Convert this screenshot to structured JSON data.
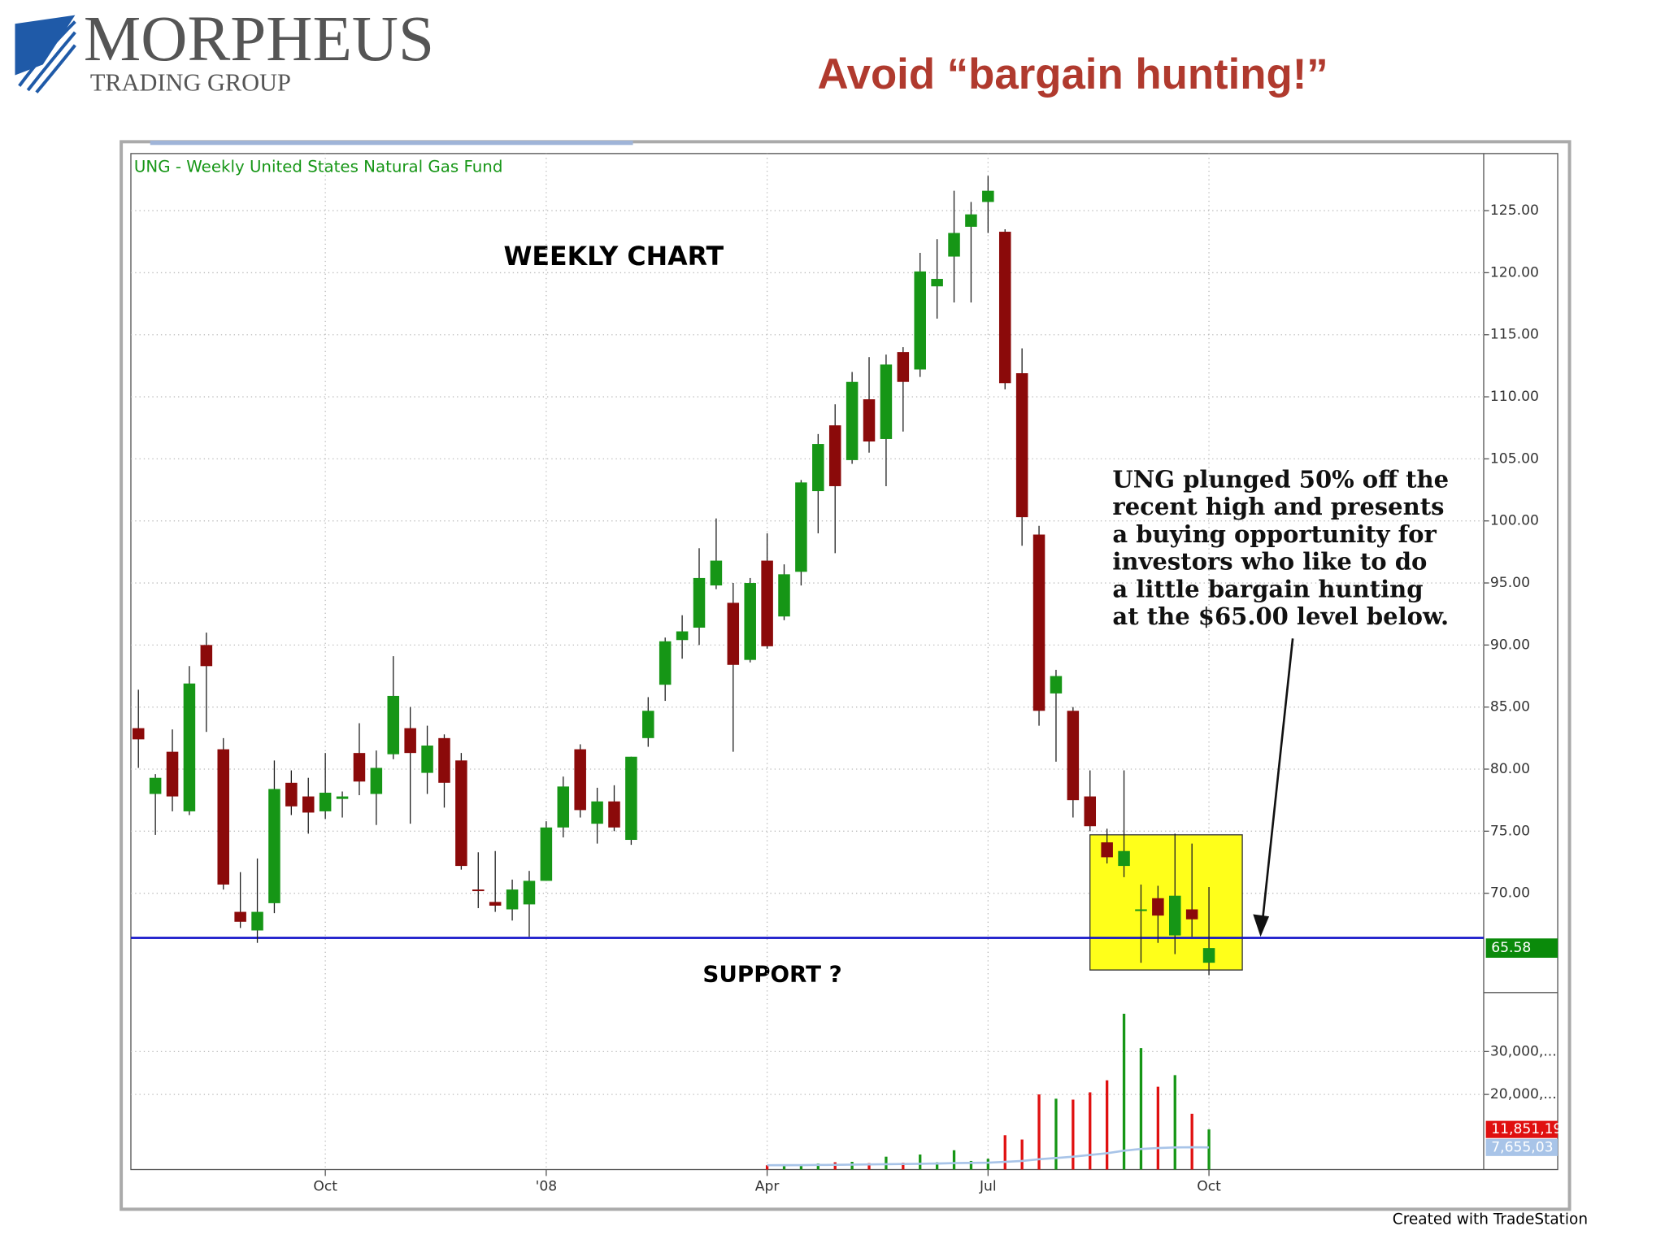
{
  "logo": {
    "name": "MORPHEUS",
    "tagline": "TRADING GROUP"
  },
  "slide_title": "Avoid “bargain hunting!”",
  "footer": "Created with TradeStation",
  "chart_data": {
    "type": "candlestick",
    "title": "UNG - Weekly  United States Natural Gas Fund",
    "annotations": {
      "chart_label": "WEEKLY CHART",
      "support_label": "SUPPORT ?",
      "note": [
        "UNG plunged 50% off the",
        "recent high and presents",
        "a buying opportunity for",
        "investors who like to do",
        "a little bargain hunting",
        "at the $65.00 level below."
      ]
    },
    "categories": [
      null,
      null,
      null,
      null,
      null,
      null,
      null,
      null,
      null,
      null,
      null,
      "Oct",
      null,
      null,
      null,
      null,
      null,
      null,
      null,
      null,
      null,
      null,
      null,
      null,
      "'08",
      null,
      null,
      null,
      null,
      null,
      null,
      null,
      null,
      null,
      null,
      null,
      null,
      "Apr",
      null,
      null,
      null,
      null,
      null,
      null,
      null,
      null,
      null,
      null,
      null,
      null,
      "Jul",
      null,
      null,
      null,
      null,
      null,
      null,
      null,
      null,
      null,
      null,
      null,
      null,
      "Oct"
    ],
    "open": [
      83.3,
      78.0,
      81.4,
      76.6,
      90.0,
      81.6,
      68.5,
      67.0,
      69.2,
      78.9,
      77.8,
      76.6,
      77.6,
      81.3,
      78.0,
      81.2,
      83.3,
      79.7,
      82.5,
      80.7,
      70.3,
      69.3,
      68.7,
      69.1,
      71.0,
      75.3,
      81.6,
      75.6,
      77.4,
      74.3,
      82.5,
      86.8,
      90.4,
      91.4,
      94.8,
      93.4,
      88.8,
      96.8,
      92.3,
      95.9,
      102.4,
      107.7,
      104.9,
      109.8,
      106.6,
      113.6,
      112.2,
      118.9,
      121.3,
      123.7,
      125.7,
      123.3,
      111.9,
      98.9,
      86.1,
      84.7,
      77.8,
      74.1,
      72.2,
      68.6,
      69.6,
      66.6,
      68.7,
      64.4
    ],
    "high": [
      86.4,
      79.6,
      83.2,
      88.3,
      91.0,
      82.5,
      71.7,
      72.8,
      80.7,
      79.9,
      79.3,
      81.3,
      78.2,
      83.7,
      81.5,
      89.1,
      85.0,
      83.5,
      82.8,
      81.3,
      73.3,
      73.4,
      71.1,
      71.8,
      75.8,
      79.4,
      82.0,
      78.5,
      78.7,
      81.0,
      85.8,
      90.6,
      92.4,
      97.8,
      100.2,
      95.0,
      95.4,
      99.0,
      96.5,
      103.3,
      107.0,
      109.4,
      112.0,
      113.2,
      113.4,
      114.0,
      121.6,
      122.7,
      126.6,
      125.7,
      127.8,
      123.5,
      113.9,
      99.6,
      88.0,
      85.0,
      79.9,
      75.2,
      79.9,
      70.7,
      70.6,
      74.8,
      74.0,
      70.5
    ],
    "low": [
      80.1,
      74.7,
      76.6,
      76.3,
      83.0,
      70.3,
      67.2,
      66.0,
      68.4,
      76.3,
      74.8,
      76.0,
      76.1,
      77.9,
      75.5,
      80.8,
      75.6,
      78.0,
      76.9,
      71.9,
      68.8,
      68.5,
      67.8,
      66.5,
      71.0,
      74.5,
      76.1,
      74.0,
      75.0,
      73.9,
      81.8,
      85.5,
      88.9,
      90.0,
      94.5,
      81.4,
      88.6,
      89.7,
      92.0,
      94.8,
      99.0,
      97.4,
      104.6,
      105.5,
      102.8,
      107.2,
      111.6,
      116.3,
      117.6,
      117.6,
      123.2,
      110.6,
      98.0,
      83.5,
      80.6,
      76.1,
      75.0,
      72.4,
      71.3,
      64.4,
      66.0,
      65.1,
      66.5,
      63.4
    ],
    "close": [
      82.4,
      79.3,
      77.8,
      86.9,
      88.3,
      70.7,
      67.7,
      68.5,
      78.4,
      77.0,
      76.5,
      78.1,
      77.8,
      79.0,
      80.1,
      85.9,
      81.3,
      81.9,
      78.9,
      72.2,
      70.2,
      69.0,
      70.3,
      71.0,
      75.3,
      78.6,
      76.7,
      77.4,
      75.3,
      81.0,
      84.7,
      90.3,
      91.1,
      95.4,
      96.8,
      88.4,
      95.0,
      89.9,
      95.7,
      103.1,
      106.2,
      102.8,
      111.2,
      106.4,
      112.6,
      111.2,
      120.1,
      119.5,
      123.2,
      124.7,
      126.6,
      111.1,
      100.3,
      84.7,
      87.5,
      77.5,
      75.4,
      72.9,
      73.4,
      68.7,
      68.2,
      69.8,
      67.9,
      65.58
    ],
    "up_color": "#169616",
    "down_color": "#8b0a0a",
    "ylim": [
      62,
      129.6
    ],
    "yticks": [
      {
        "value": 70,
        "label": "70.00"
      },
      {
        "value": 75,
        "label": "75.00"
      },
      {
        "value": 80,
        "label": "80.00"
      },
      {
        "value": 85,
        "label": "85.00"
      },
      {
        "value": 90,
        "label": "90.00"
      },
      {
        "value": 95,
        "label": "95.00"
      },
      {
        "value": 100,
        "label": "100.00"
      },
      {
        "value": 105,
        "label": "105.00"
      },
      {
        "value": 110,
        "label": "110.00"
      },
      {
        "value": 115,
        "label": "115.00"
      },
      {
        "value": 120,
        "label": "120.00"
      },
      {
        "value": 125,
        "label": "125.00"
      }
    ],
    "grid": true,
    "support_level": 66.4,
    "support_color": "#1010c8",
    "last_price_color": "#0a8a0a",
    "volume": {
      "values": [
        null,
        null,
        null,
        null,
        null,
        null,
        null,
        null,
        null,
        null,
        null,
        null,
        null,
        null,
        null,
        null,
        null,
        null,
        null,
        null,
        null,
        null,
        null,
        null,
        null,
        null,
        null,
        null,
        null,
        null,
        null,
        null,
        null,
        null,
        null,
        null,
        null,
        3500000,
        3700000,
        3600000,
        3900000,
        4200000,
        4300000,
        4000000,
        5500000,
        4100000,
        6000000,
        4200000,
        7000000,
        4500000,
        5000000,
        10500000,
        9500000,
        20000000,
        19000000,
        18800000,
        20500000,
        23300000,
        38800000,
        30800000,
        21800000,
        24500000,
        15500000,
        11851190
      ],
      "up_color": "#169616",
      "down_color": "#e01010",
      "last_label": "11,851,19",
      "label_color": "#e01010"
    },
    "volume_avg": {
      "values": [
        null,
        null,
        null,
        null,
        null,
        null,
        null,
        null,
        null,
        null,
        null,
        null,
        null,
        null,
        null,
        null,
        null,
        null,
        null,
        null,
        null,
        null,
        null,
        null,
        null,
        null,
        null,
        null,
        null,
        null,
        null,
        null,
        null,
        null,
        null,
        null,
        null,
        3500000,
        3520000,
        3540000,
        3570000,
        3600000,
        3650000,
        3700000,
        3750000,
        3800000,
        3850000,
        3900000,
        4000000,
        4050000,
        4100000,
        4300000,
        4500000,
        4900000,
        5200000,
        5500000,
        5900000,
        6300000,
        6900000,
        7300000,
        7500000,
        7650000,
        7700000,
        7655030
      ],
      "color": "#a8c4e8",
      "last_label": "7,655,03"
    },
    "vlim": [
      2500000,
      43750000
    ],
    "vticks": [
      {
        "value": 20000000,
        "label": "20,000,..."
      },
      {
        "value": 30000000,
        "label": "30,000,..."
      }
    ]
  }
}
